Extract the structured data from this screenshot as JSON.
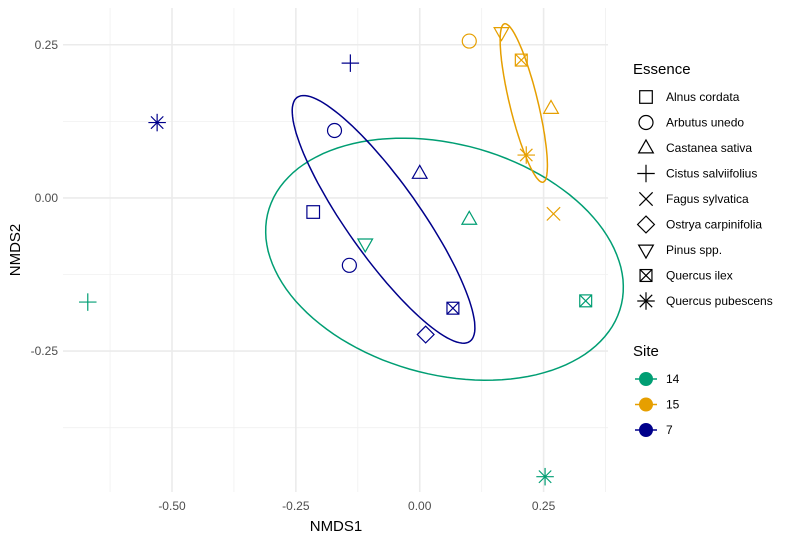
{
  "chart_data": {
    "type": "scatter",
    "xlabel": "NMDS1",
    "ylabel": "NMDS2",
    "xlim": [
      -0.72,
      0.38
    ],
    "ylim": [
      -0.48,
      0.31
    ],
    "x_ticks": [
      -0.5,
      -0.25,
      0.0,
      0.25
    ],
    "y_ticks": [
      -0.25,
      0.0,
      0.25
    ],
    "x_tick_labels": [
      "-0.50",
      "-0.25",
      "0.00",
      "0.25"
    ],
    "y_tick_labels": [
      "-0.25",
      "0.00",
      "0.25"
    ],
    "grid": true,
    "legend_position": "right",
    "legends": {
      "essence": {
        "title": "Essence",
        "items": [
          {
            "label": "Alnus cordata",
            "shape": "square"
          },
          {
            "label": "Arbutus unedo",
            "shape": "circle"
          },
          {
            "label": "Castanea sativa",
            "shape": "triangle-up"
          },
          {
            "label": "Cistus salviifolius",
            "shape": "plus"
          },
          {
            "label": "Fagus sylvatica",
            "shape": "cross"
          },
          {
            "label": "Ostrya carpinifolia",
            "shape": "diamond"
          },
          {
            "label": "Pinus spp.",
            "shape": "triangle-down"
          },
          {
            "label": "Quercus ilex",
            "shape": "square-cross"
          },
          {
            "label": "Quercus pubescens",
            "shape": "asterisk"
          }
        ]
      },
      "site": {
        "title": "Site",
        "items": [
          {
            "label": "14",
            "color": "#009E73"
          },
          {
            "label": "15",
            "color": "#E69F00"
          },
          {
            "label": "7",
            "color": "#00008B"
          }
        ]
      }
    },
    "points": [
      {
        "x": -0.67,
        "y": -0.17,
        "shape": "plus",
        "site": "14"
      },
      {
        "x": -0.11,
        "y": -0.075,
        "shape": "triangle-down",
        "site": "14"
      },
      {
        "x": 0.1,
        "y": -0.035,
        "shape": "triangle-up",
        "site": "14"
      },
      {
        "x": 0.335,
        "y": -0.168,
        "shape": "square-cross",
        "site": "14"
      },
      {
        "x": 0.253,
        "y": -0.455,
        "shape": "asterisk",
        "site": "14"
      },
      {
        "x": 0.1,
        "y": 0.256,
        "shape": "circle",
        "site": "15"
      },
      {
        "x": 0.165,
        "y": 0.27,
        "shape": "triangle-down",
        "site": "15"
      },
      {
        "x": 0.205,
        "y": 0.225,
        "shape": "square-cross",
        "site": "15"
      },
      {
        "x": 0.265,
        "y": 0.146,
        "shape": "triangle-up",
        "site": "15"
      },
      {
        "x": 0.215,
        "y": 0.07,
        "shape": "asterisk",
        "site": "15"
      },
      {
        "x": 0.27,
        "y": -0.026,
        "shape": "cross",
        "site": "15"
      },
      {
        "x": -0.14,
        "y": 0.22,
        "shape": "plus",
        "site": "7"
      },
      {
        "x": -0.53,
        "y": 0.123,
        "shape": "asterisk",
        "site": "7"
      },
      {
        "x": -0.172,
        "y": 0.11,
        "shape": "circle",
        "site": "7"
      },
      {
        "x": 0.0,
        "y": 0.04,
        "shape": "triangle-up",
        "site": "7"
      },
      {
        "x": -0.215,
        "y": -0.023,
        "shape": "square",
        "site": "7"
      },
      {
        "x": -0.142,
        "y": -0.11,
        "shape": "circle",
        "site": "7"
      },
      {
        "x": 0.067,
        "y": -0.18,
        "shape": "square-cross",
        "site": "7"
      },
      {
        "x": 0.012,
        "y": -0.223,
        "shape": "diamond",
        "site": "7"
      }
    ],
    "ellipses": [
      {
        "site": "14",
        "cx": 0.05,
        "cy": -0.1,
        "a": 0.365,
        "b": 0.19,
        "angle_deg": -10
      },
      {
        "site": "15",
        "cx": 0.21,
        "cy": 0.155,
        "a": 0.135,
        "b": 0.028,
        "angle_deg": -73
      },
      {
        "site": "7",
        "cx": -0.073,
        "cy": -0.035,
        "a": 0.265,
        "b": 0.068,
        "angle_deg": -48
      }
    ]
  }
}
